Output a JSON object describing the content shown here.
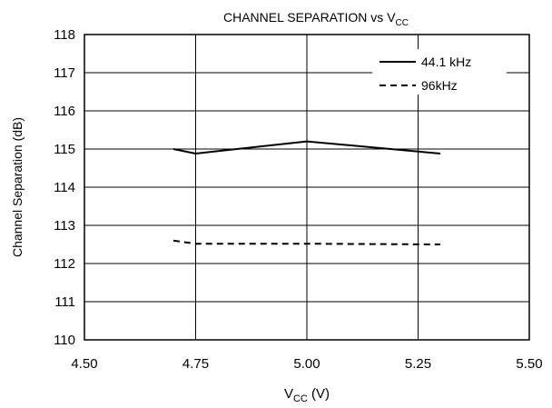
{
  "chart_data": {
    "type": "line",
    "title": {
      "main": "CHANNEL SEPARATION vs V",
      "sub": "CC"
    },
    "xlabel": {
      "main": "V",
      "sub": "CC",
      "suffix": " (V)"
    },
    "ylabel": "Channel Separation (dB)",
    "xlim": [
      4.5,
      5.5
    ],
    "ylim": [
      110,
      118
    ],
    "xticks": [
      4.5,
      4.75,
      5.0,
      5.25,
      5.5
    ],
    "xtick_labels": [
      "4.50",
      "4.75",
      "5.00",
      "5.25",
      "5.50"
    ],
    "yticks": [
      110,
      111,
      112,
      113,
      114,
      115,
      116,
      117,
      118
    ],
    "ytick_labels": [
      "110",
      "111",
      "112",
      "113",
      "114",
      "115",
      "116",
      "117",
      "118"
    ],
    "grid": true,
    "legend_position": "top-right",
    "series": [
      {
        "name": "44.1 kHz",
        "style": "solid",
        "color": "#000000",
        "x": [
          4.7,
          4.75,
          5.0,
          5.3
        ],
        "y": [
          115.0,
          114.88,
          115.2,
          114.88
        ]
      },
      {
        "name": "96kHz",
        "style": "dashed",
        "color": "#000000",
        "x": [
          4.7,
          4.75,
          5.0,
          5.3
        ],
        "y": [
          112.6,
          112.52,
          112.52,
          112.5
        ]
      }
    ]
  }
}
